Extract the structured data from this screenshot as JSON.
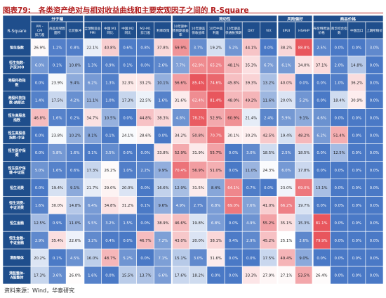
{
  "figure_number": "图表79:",
  "title": "各类资产绝对与相对收益曲线和主要宏观因子之间的 R-Square",
  "source": "资料来源：Wind，华泰研究",
  "colors": {
    "header_bg": "#1f4e8c",
    "title_red": "#b22222",
    "high_red": "#e8565d",
    "low_blue": "#4a79c6",
    "mid_white": "#ffffff"
  },
  "chart_data": {
    "type": "heatmap",
    "title": "各类资产绝对与相对收益曲线和主要宏观因子之间的 R-Square",
    "corner_label": "R-Square",
    "groups": [
      {
        "label": "分子端",
        "span": 3
      },
      {
        "label": "",
        "span": 5
      },
      {
        "label": "流动性",
        "span": 6
      },
      {
        "label": "风险偏好",
        "span": 2
      },
      {
        "label": "商品价格",
        "span": 4
      }
    ],
    "columns": [
      "PPI - CPI 剪刀差",
      "商品房销售面积",
      "信贷脉冲",
      "全球制造业PMI",
      "中国:M1同比",
      "中国:M2同比",
      "M2-M1剪刀差",
      "利率政策",
      "10年期中债到期收益率",
      "10年期美债收益率",
      "10年中美利差",
      "10年期美债通胀预期",
      "DXY",
      "VIX",
      "EPUI",
      "HSAHP",
      "布伦特原油价格",
      "南华综合指数",
      "中国出口",
      "上期所铜价"
    ],
    "rows": [
      "恒生指数",
      "恒生指数-沪深300",
      "港股科技指数",
      "港股科技指数-纳斯达克",
      "恒生高股息指数",
      "恒生高股息指数-中证红利",
      "恒生医疗保健",
      "恒生医疗保健-中证医药",
      "恒生消费",
      "恒生消费-中证消费",
      "恒生金融",
      "恒生金融-中证金融",
      "港股整体",
      "港股整体-A股整体"
    ],
    "values": [
      [
        26.9,
        1.2,
        0.8,
        22.1,
        40.8,
        0.6,
        0.8,
        37.8,
        59.9,
        3.7,
        19.2,
        5.2,
        44.1,
        0.0,
        38.2,
        88.8,
        2.5,
        0.0,
        0.0,
        3.0
      ],
      [
        6.0,
        0.1,
        10.8,
        1.3,
        0.9,
        0.1,
        0.0,
        2.6,
        7.7,
        62.9,
        65.2,
        48.1,
        35.3,
        6.7,
        6.1,
        34.0,
        37.1,
        2.0,
        14.8,
        0.0
      ],
      [
        0.0,
        23.9,
        9.4,
        6.2,
        1.3,
        32.3,
        33.2,
        10.1,
        56.6,
        85.4,
        74.6,
        45.8,
        39.3,
        13.2,
        40.0,
        0.0,
        0.0,
        1.0,
        36.2,
        0.0
      ],
      [
        1.4,
        17.5,
        4.2,
        11.1,
        1.0,
        17.3,
        22.5,
        1.6,
        31.6,
        62.4,
        81.4,
        48.0,
        49.2,
        11.6,
        20.0,
        5.2,
        0.0,
        18.4,
        30.9,
        0.0
      ],
      [
        46.8,
        1.6,
        0.2,
        34.7,
        10.5,
        0.0,
        44.8,
        38.3,
        4.8,
        78.2,
        52.9,
        60.9,
        21.4,
        2.4,
        5.9,
        9.1,
        4.6,
        0.0,
        0.0,
        0.0
      ],
      [
        0.0,
        23.8,
        10.2,
        8.1,
        0.1,
        24.1,
        28.6,
        0.0,
        34.2,
        50.8,
        70.7,
        30.1,
        30.2,
        42.5,
        19.4,
        48.2,
        6.2,
        51.4,
        0.0,
        0.0
      ],
      [
        0.0,
        5.8,
        1.6,
        0.1,
        3.5,
        0.0,
        0.0,
        33.8,
        52.9,
        31.9,
        55.7,
        0.0,
        3.0,
        18.5,
        2.5,
        18.5,
        0.0,
        12.5,
        0.0,
        0.0
      ],
      [
        5.0,
        1.6,
        0.6,
        17.3,
        26.2,
        1.0,
        2.2,
        9.9,
        70.4,
        56.9,
        51.0,
        0.0,
        11.0,
        24.3,
        6.0,
        17.8,
        0.0,
        0.0,
        0.0,
        0.0
      ],
      [
        0.0,
        19.4,
        9.1,
        21.7,
        29.0,
        20.0,
        0.0,
        16.6,
        12.9,
        31.5,
        8.4,
        64.1,
        0.7,
        0.0,
        23.0,
        69.0,
        13.1,
        0.0,
        0.0,
        0.0
      ],
      [
        1.6,
        30.0,
        14.8,
        6.4,
        34.8,
        31.2,
        0.1,
        9.6,
        4.9,
        2.7,
        6.8,
        69.0,
        7.6,
        41.0,
        66.2,
        19.7,
        0.0,
        0.0,
        0.0,
        0.0
      ],
      [
        12.5,
        0.9,
        11.0,
        5.5,
        3.2,
        1.5,
        0.0,
        38.9,
        46.6,
        19.8,
        6.8,
        0.0,
        4.9,
        55.2,
        35.1,
        15.3,
        81.1,
        0.0,
        0.0,
        0.0
      ],
      [
        2.9,
        35.4,
        22.6,
        3.2,
        0.4,
        0.0,
        46.7,
        7.2,
        43.0,
        20.0,
        38.1,
        0.4,
        2.9,
        45.2,
        25.1,
        2.6,
        79.9,
        0.0,
        0.0,
        0.0
      ],
      [
        20.2,
        0.1,
        4.5,
        16.0,
        48.7,
        5.2,
        0.0,
        7.1,
        15.1,
        3.0,
        31.6,
        0.0,
        0.0,
        17.5,
        49.4,
        9.0,
        0.0,
        0.0,
        0.0,
        0.0
      ],
      [
        17.3,
        3.6,
        26.0,
        1.6,
        0.0,
        15.5,
        13.7,
        6.6,
        17.6,
        18.2,
        0.0,
        0.0,
        33.3,
        27.9,
        27.1,
        53.5,
        26.4,
        0.0,
        0.0,
        0.0
      ]
    ],
    "value_suffix": "%"
  }
}
